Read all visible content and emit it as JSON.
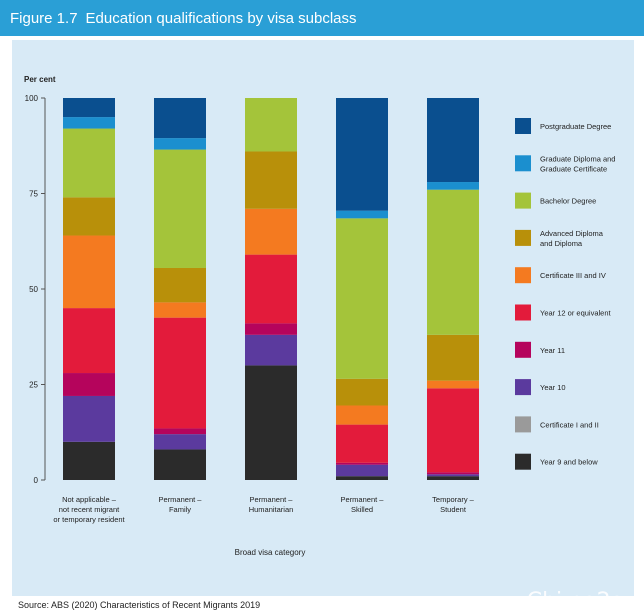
{
  "figure": {
    "number": "Figure 1.7",
    "title": "Education qualifications by visa subclass",
    "source": "Source: ABS (2020) Characteristics of Recent Migrants 2019",
    "watermark": "Chi na2au"
  },
  "chart_data": {
    "type": "bar",
    "stacked": true,
    "ylabel": "Per cent",
    "xlabel": "Broad visa category",
    "ylim": [
      0,
      100
    ],
    "yticks": [
      0,
      25,
      50,
      75,
      100
    ],
    "grid": false,
    "legend_position": "right",
    "categories": [
      [
        "Not applicable –",
        "not recent migrant",
        "or temporary resident"
      ],
      [
        "Permanent –",
        "Family"
      ],
      [
        "Permanent –",
        "Humanitarian"
      ],
      [
        "Permanent –",
        "Skilled"
      ],
      [
        "Temporary –",
        "Student"
      ]
    ],
    "series": [
      {
        "name": "Year 9 and below",
        "color": "#2b2b2b",
        "values": [
          10,
          8,
          30,
          1,
          1
        ]
      },
      {
        "name": "Certificate I and II",
        "color": "#9a9a9a",
        "values": [
          0,
          0,
          0,
          0,
          0
        ]
      },
      {
        "name": "Year 10",
        "color": "#5b3a9e",
        "values": [
          12,
          4,
          8,
          3,
          0.5
        ]
      },
      {
        "name": "Year 11",
        "color": "#b5045c",
        "values": [
          6,
          1.5,
          3,
          0.5,
          0.5
        ]
      },
      {
        "name": "Year 12 or equivalent",
        "color": "#e31b3b",
        "values": [
          17,
          29,
          18,
          10,
          22
        ]
      },
      {
        "name": "Certificate III and IV",
        "color": "#f47a20",
        "values": [
          19,
          4,
          12,
          5,
          2
        ]
      },
      {
        "name": "Advanced Diploma and Diploma",
        "color": "#b8900a",
        "values": [
          10,
          9,
          15,
          7,
          12
        ]
      },
      {
        "name": "Bachelor Degree",
        "color": "#a4c43a",
        "values": [
          18,
          31,
          14,
          42,
          38
        ]
      },
      {
        "name": "Graduate Diploma and Graduate Certificate",
        "color": "#1b8fcf",
        "values": [
          3,
          3,
          0,
          2,
          2
        ]
      },
      {
        "name": "Postgraduate Degree",
        "color": "#0a4f8f",
        "values": [
          5,
          10.5,
          0,
          29.5,
          22
        ]
      }
    ],
    "legend": [
      [
        "Postgraduate Degree"
      ],
      [
        "Graduate Diploma and",
        "Graduate Certificate"
      ],
      [
        "Bachelor Degree"
      ],
      [
        "Advanced Diploma",
        "and Diploma"
      ],
      [
        "Certificate III and IV"
      ],
      [
        "Year 12 or equivalent"
      ],
      [
        "Year 11"
      ],
      [
        "Year 10"
      ],
      [
        "Certificate I and II"
      ],
      [
        "Year 9 and below"
      ]
    ],
    "legend_colors": [
      "#0a4f8f",
      "#1b8fcf",
      "#a4c43a",
      "#b8900a",
      "#f47a20",
      "#e31b3b",
      "#b5045c",
      "#5b3a9e",
      "#9a9a9a",
      "#2b2b2b"
    ]
  }
}
